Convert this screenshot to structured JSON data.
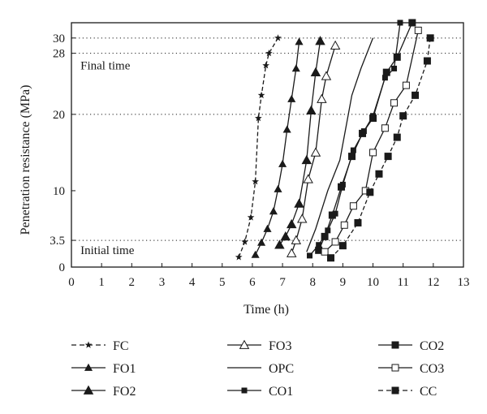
{
  "chart_data": {
    "type": "line",
    "title": "",
    "xlabel": "Time (h)",
    "ylabel": "Penetration resistance (MPa)",
    "xlim": [
      0,
      13
    ],
    "ylim": [
      0,
      32
    ],
    "xticks": [
      "0",
      "1",
      "2",
      "3",
      "4",
      "5",
      "6",
      "7",
      "8",
      "9",
      "10",
      "11",
      "12",
      "13"
    ],
    "yticks": [
      {
        "value": 0,
        "label": "0"
      },
      {
        "value": 3.5,
        "label": "3.5"
      },
      {
        "value": 10,
        "label": "10"
      },
      {
        "value": 20,
        "label": "20"
      },
      {
        "value": 28,
        "label": "28"
      },
      {
        "value": 30,
        "label": "30"
      }
    ],
    "reference_lines": [
      3.5,
      20,
      28,
      30
    ],
    "annotations": [
      {
        "text": "Final time",
        "x": 0.3,
        "y": 25.9
      },
      {
        "text": "Initial time",
        "x": 0.3,
        "y": 1.7
      }
    ],
    "legend_placement": "bottom",
    "series": [
      {
        "name": "FC",
        "marker": "star",
        "dash": true,
        "x": [
          5.55,
          5.75,
          5.95,
          6.1,
          6.2,
          6.3,
          6.45,
          6.55,
          6.85
        ],
        "y": [
          1.3,
          3.3,
          6.5,
          11.2,
          19.5,
          22.5,
          26.4,
          28,
          30
        ]
      },
      {
        "name": "FO1",
        "marker": "triangle-filled-small",
        "dash": false,
        "x": [
          6.1,
          6.3,
          6.5,
          6.7,
          6.85,
          7.0,
          7.15,
          7.3,
          7.45,
          7.55
        ],
        "y": [
          1.6,
          3.2,
          5.0,
          7.3,
          10.2,
          13.5,
          18.0,
          22.0,
          26.0,
          29.5
        ]
      },
      {
        "name": "FO2",
        "marker": "triangle-filled",
        "dash": false,
        "x": [
          6.9,
          7.1,
          7.3,
          7.55,
          7.8,
          7.95,
          8.1,
          8.25
        ],
        "y": [
          2.9,
          4.0,
          5.6,
          8.3,
          14.0,
          20.5,
          25.5,
          29.6
        ]
      },
      {
        "name": "FO3",
        "marker": "triangle-open",
        "dash": false,
        "x": [
          7.3,
          7.45,
          7.65,
          7.85,
          8.1,
          8.3,
          8.45,
          8.75
        ],
        "y": [
          1.8,
          3.5,
          6.3,
          11.5,
          15.0,
          22.0,
          25.0,
          29.0
        ]
      },
      {
        "name": "OPC",
        "marker": "none",
        "dash": false,
        "x": [
          7.8,
          8.1,
          8.5,
          8.9,
          9.3,
          9.6,
          10.0
        ],
        "y": [
          2.0,
          5.0,
          10.0,
          14.0,
          22.5,
          26.0,
          30.0
        ]
      },
      {
        "name": "CO1",
        "marker": "square-filled-small",
        "dash": false,
        "x": [
          7.9,
          8.2,
          8.5,
          8.75,
          9.0,
          9.35,
          9.7,
          10.0,
          10.4,
          10.7,
          10.9
        ],
        "y": [
          1.5,
          2.9,
          4.8,
          7.0,
          10.8,
          15.3,
          17.8,
          19.8,
          24.8,
          26.0,
          32.0
        ]
      },
      {
        "name": "CO2",
        "marker": "square-filled",
        "dash": false,
        "x": [
          8.2,
          8.4,
          8.65,
          8.95,
          9.3,
          9.65,
          10.0,
          10.45,
          10.8,
          11.3
        ],
        "y": [
          2.2,
          4.0,
          6.8,
          10.5,
          14.5,
          17.5,
          19.5,
          25.5,
          27.5,
          32.0
        ]
      },
      {
        "name": "CO3",
        "marker": "square-open",
        "dash": false,
        "x": [
          8.4,
          8.75,
          9.05,
          9.35,
          9.75,
          10.0,
          10.4,
          10.7,
          11.1,
          11.5
        ],
        "y": [
          2.0,
          3.3,
          5.5,
          8.0,
          10.0,
          15.0,
          18.2,
          21.5,
          23.8,
          31.0
        ]
      },
      {
        "name": "CC",
        "marker": "square-filled",
        "dash": true,
        "x": [
          8.6,
          9.0,
          9.5,
          9.9,
          10.2,
          10.5,
          10.8,
          11.0,
          11.4,
          11.8,
          11.9
        ],
        "y": [
          1.2,
          2.8,
          5.8,
          9.8,
          12.2,
          14.5,
          17.0,
          19.8,
          22.5,
          27.0,
          30.0
        ]
      }
    ]
  }
}
